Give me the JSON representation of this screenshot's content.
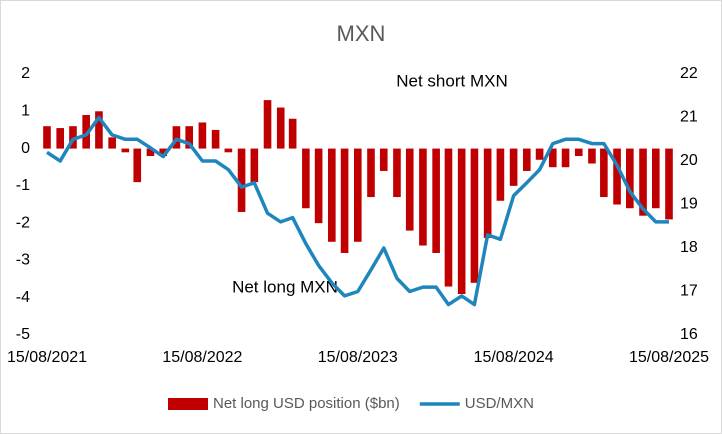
{
  "chart_data": {
    "type": "bar-line",
    "title": "MXN",
    "annotations": [
      "Net short MXN",
      "Net long MXN"
    ],
    "x": [
      "15/08/2021",
      "15/09/2021",
      "15/10/2021",
      "15/11/2021",
      "15/12/2021",
      "15/01/2022",
      "15/02/2022",
      "15/03/2022",
      "15/04/2022",
      "15/05/2022",
      "15/06/2022",
      "15/07/2022",
      "15/08/2022",
      "15/09/2022",
      "15/10/2022",
      "15/11/2022",
      "15/12/2022",
      "15/01/2023",
      "15/02/2023",
      "15/03/2023",
      "15/04/2023",
      "15/05/2023",
      "15/06/2023",
      "15/07/2023",
      "15/08/2023",
      "15/09/2023",
      "15/10/2023",
      "15/11/2023",
      "15/12/2023",
      "15/01/2024",
      "15/02/2024",
      "15/03/2024",
      "15/04/2024",
      "15/05/2024",
      "15/06/2024",
      "15/07/2024",
      "15/08/2024",
      "15/09/2024",
      "15/10/2024",
      "15/11/2024",
      "15/12/2024",
      "15/01/2025",
      "15/02/2025",
      "15/03/2025",
      "15/04/2025",
      "15/05/2025",
      "15/06/2025",
      "15/07/2025",
      "15/08/2025"
    ],
    "series": [
      {
        "name": "Net long USD position ($bn)",
        "kind": "bar",
        "color": "#c00000",
        "values": [
          0.6,
          0.55,
          0.6,
          0.9,
          1.0,
          0.3,
          -0.1,
          -0.9,
          -0.2,
          -0.2,
          0.6,
          0.6,
          0.7,
          0.5,
          -0.1,
          -1.7,
          -0.9,
          1.3,
          1.1,
          0.8,
          -1.6,
          -2.0,
          -2.5,
          -2.8,
          -2.5,
          -1.3,
          -0.6,
          -1.3,
          -2.2,
          -2.6,
          -2.8,
          -3.7,
          -3.9,
          -3.6,
          -2.4,
          -1.4,
          -1.0,
          -0.6,
          -0.3,
          -0.5,
          -0.5,
          -0.2,
          -0.4,
          -1.3,
          -1.5,
          -1.6,
          -1.8,
          -1.6,
          -1.9
        ]
      },
      {
        "name": "USD/MXN",
        "kind": "line",
        "axis": "y2",
        "color": "#1f86bd",
        "values": [
          20.2,
          20.0,
          20.5,
          20.6,
          21.0,
          20.6,
          20.5,
          20.5,
          20.3,
          20.1,
          20.5,
          20.4,
          20.0,
          20.0,
          19.8,
          19.4,
          19.5,
          18.8,
          18.6,
          18.7,
          18.1,
          17.6,
          17.2,
          16.9,
          17.0,
          17.5,
          18.0,
          17.3,
          17.0,
          17.1,
          17.1,
          16.7,
          16.9,
          16.7,
          18.3,
          18.2,
          19.2,
          19.5,
          19.8,
          20.4,
          20.5,
          20.5,
          20.4,
          20.4,
          19.9,
          19.3,
          18.9,
          18.6,
          18.6
        ]
      }
    ],
    "xlim": [
      "15/08/2021",
      "15/08/2025"
    ],
    "xticks": [
      "15/08/2021",
      "15/08/2022",
      "15/08/2023",
      "15/08/2024",
      "15/08/2025"
    ],
    "ylim": [
      -5,
      2
    ],
    "yticks": [
      -5,
      -4,
      -3,
      -2,
      -1,
      0,
      1,
      2
    ],
    "y2lim": [
      16,
      22
    ],
    "y2ticks": [
      16,
      17,
      18,
      19,
      20,
      21,
      22
    ],
    "legend": "bottom"
  }
}
